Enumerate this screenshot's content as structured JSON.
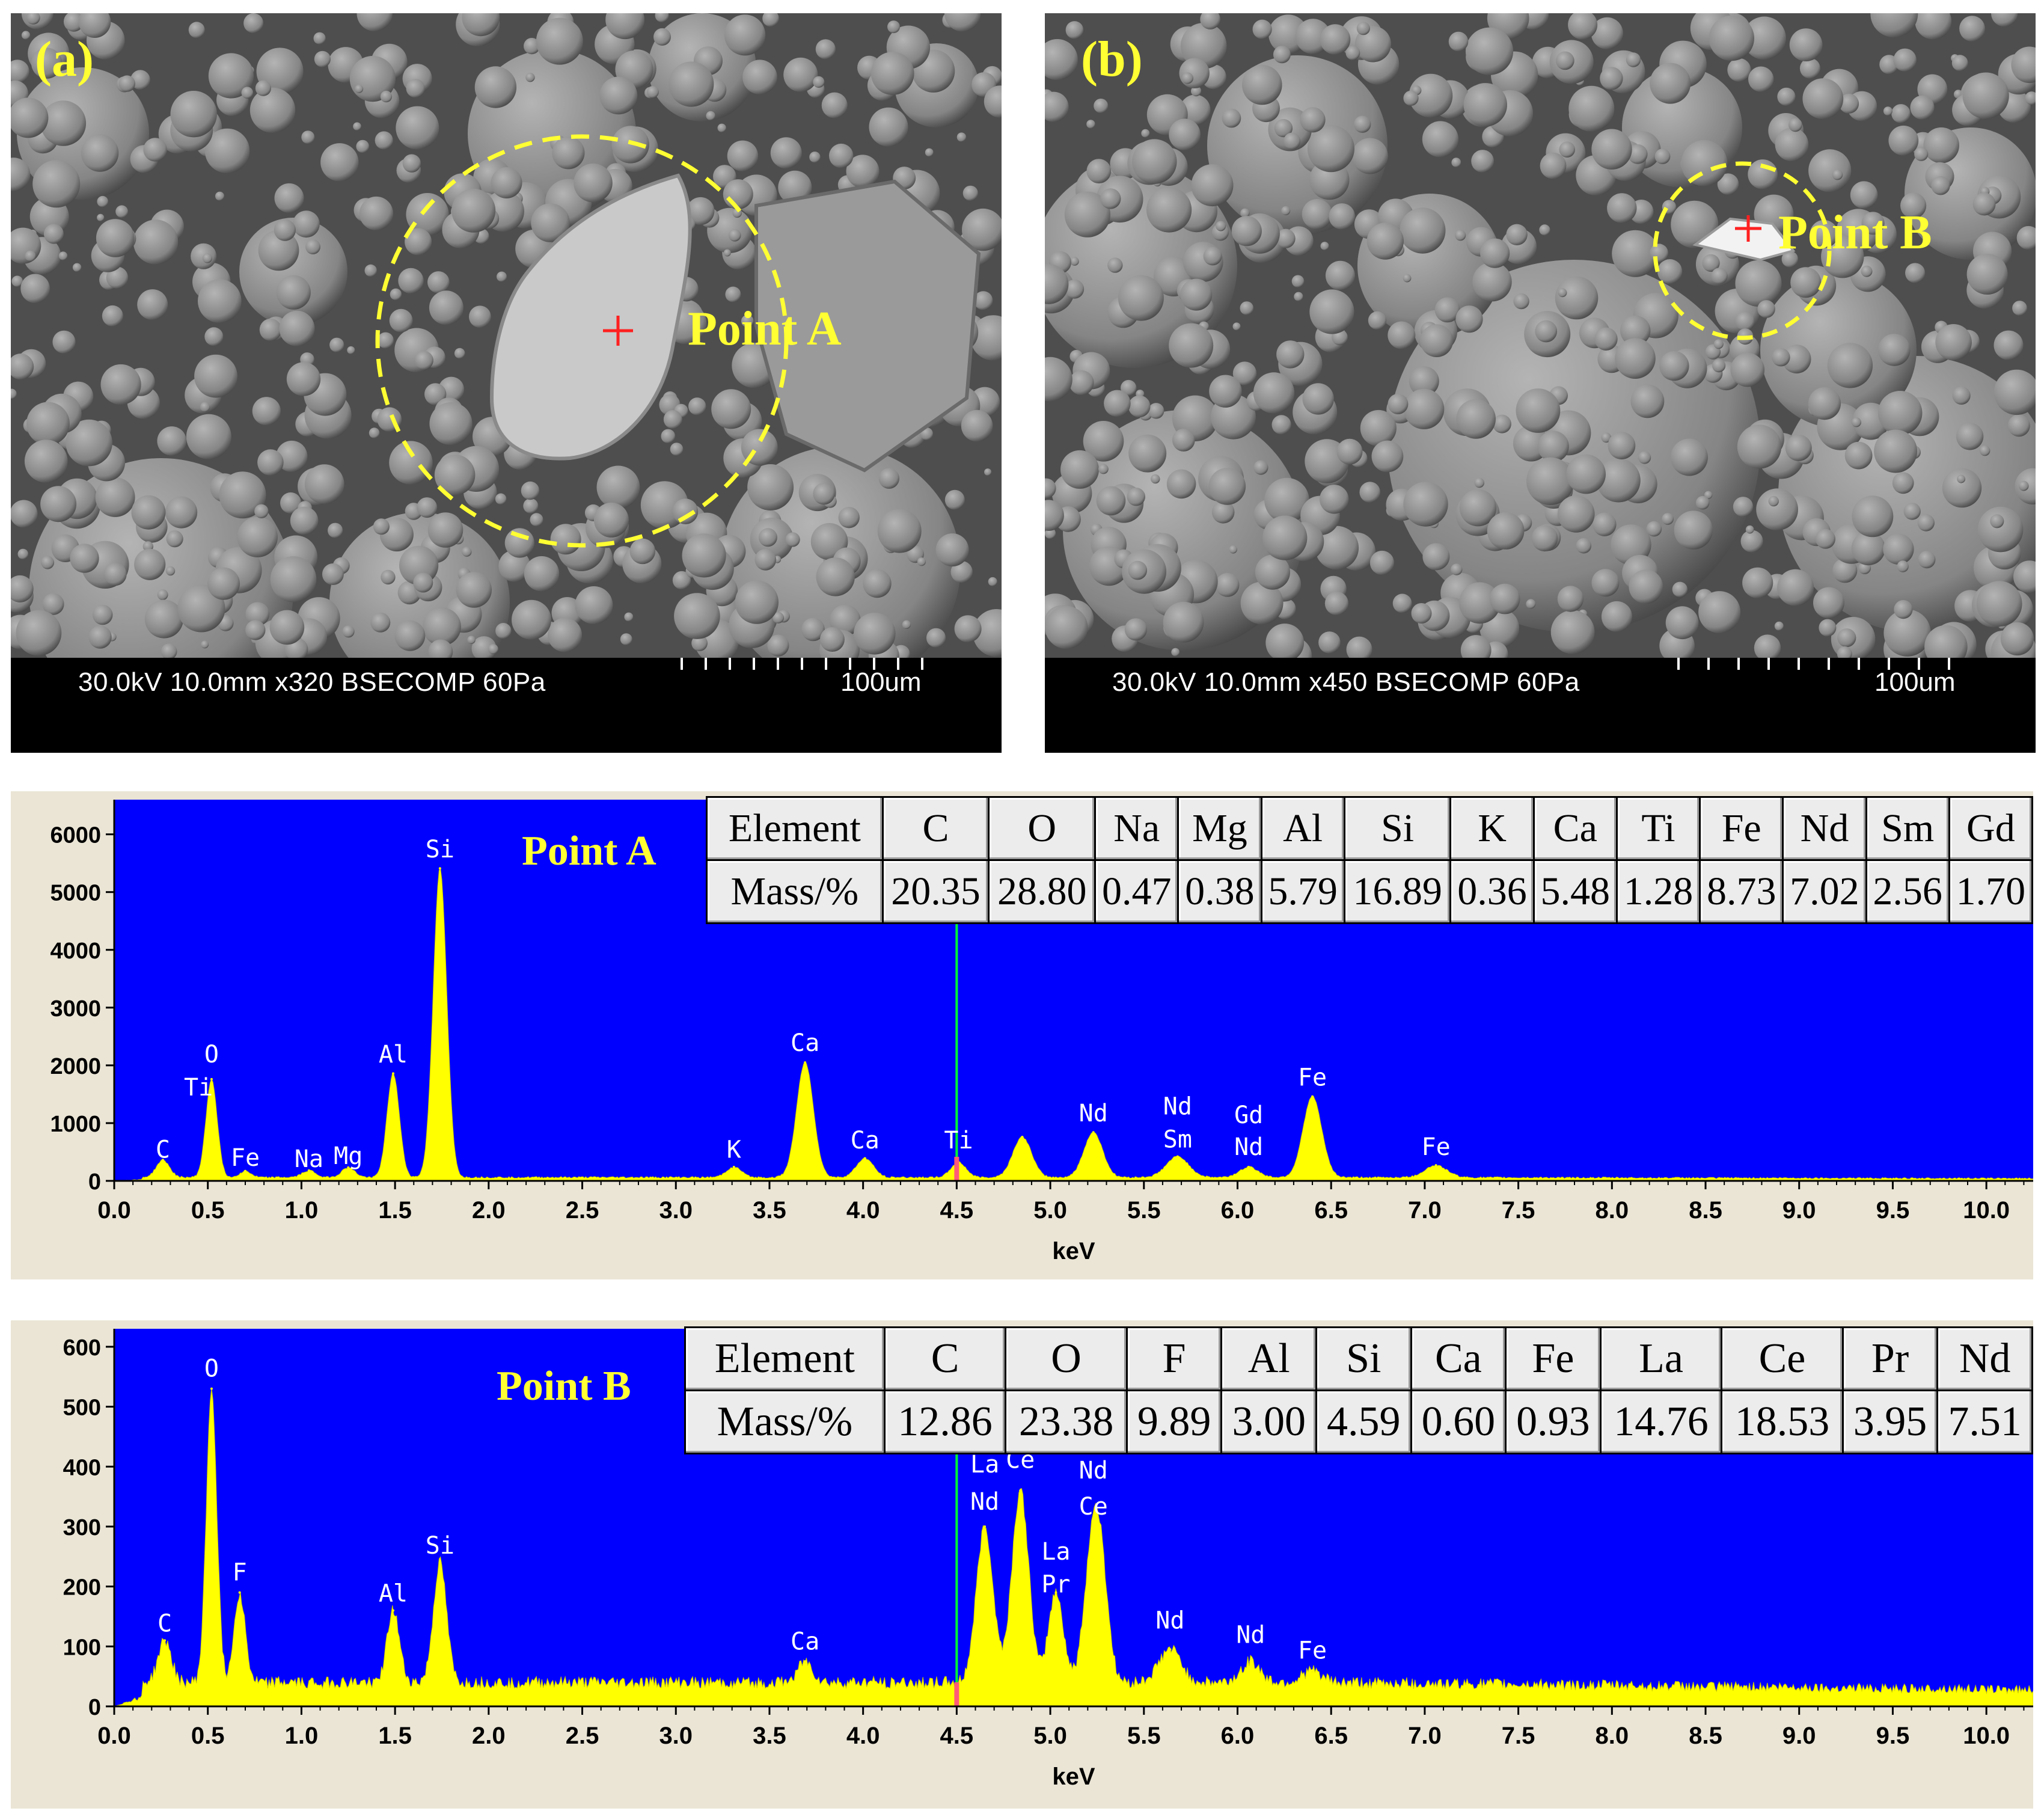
{
  "sem_a": {
    "panel_label": "(a)",
    "point_label": "Point A",
    "info": "30.0kV 10.0mm x320 BSECOMP 60Pa",
    "scale": "100um"
  },
  "sem_b": {
    "panel_label": "(b)",
    "point_label": "Point B",
    "info": "30.0kV 10.0mm x450 BSECOMP 60Pa",
    "scale": "100um"
  },
  "chart_data": [
    {
      "type": "line",
      "title": "Point A",
      "xlabel": "keV",
      "ylabel": "",
      "xlim": [
        0.0,
        10.25
      ],
      "ylim": [
        0,
        6600
      ],
      "x_ticks": [
        "0.0",
        "0.5",
        "1.0",
        "1.5",
        "2.0",
        "2.5",
        "3.0",
        "3.5",
        "4.0",
        "4.5",
        "5.0",
        "5.5",
        "6.0",
        "6.5",
        "7.0",
        "7.5",
        "8.0",
        "8.5",
        "9.0",
        "9.5",
        "10.0"
      ],
      "y_ticks": [
        "0",
        "1000",
        "2000",
        "3000",
        "4000",
        "5000",
        "6000"
      ],
      "grid": false,
      "marker_keV": 4.5,
      "colors": {
        "background": "#0000ff",
        "fill": "#ffff00",
        "marker": "#00ff33"
      },
      "baseline": 60,
      "peaks": [
        {
          "x": 0.26,
          "y": 300,
          "w": 0.035
        },
        {
          "x": 0.52,
          "y": 1700,
          "w": 0.03
        },
        {
          "x": 0.7,
          "y": 110,
          "w": 0.03
        },
        {
          "x": 1.04,
          "y": 120,
          "w": 0.035
        },
        {
          "x": 1.25,
          "y": 170,
          "w": 0.035
        },
        {
          "x": 1.49,
          "y": 1800,
          "w": 0.033
        },
        {
          "x": 1.74,
          "y": 5350,
          "w": 0.036
        },
        {
          "x": 3.31,
          "y": 180,
          "w": 0.04
        },
        {
          "x": 3.69,
          "y": 1990,
          "w": 0.045
        },
        {
          "x": 4.01,
          "y": 330,
          "w": 0.045
        },
        {
          "x": 4.51,
          "y": 260,
          "w": 0.04
        },
        {
          "x": 4.85,
          "y": 700,
          "w": 0.05
        },
        {
          "x": 5.23,
          "y": 780,
          "w": 0.05
        },
        {
          "x": 5.68,
          "y": 360,
          "w": 0.06
        },
        {
          "x": 6.06,
          "y": 180,
          "w": 0.05
        },
        {
          "x": 6.4,
          "y": 1400,
          "w": 0.05
        },
        {
          "x": 7.06,
          "y": 210,
          "w": 0.06
        }
      ],
      "annotations": [
        {
          "text": "C",
          "x": 0.26,
          "y": 400
        },
        {
          "text": "O",
          "x": 0.52,
          "y": 2050
        },
        {
          "text": "Ti",
          "x": 0.45,
          "y": 1480
        },
        {
          "text": "Fe",
          "x": 0.7,
          "y": 260
        },
        {
          "text": "Na",
          "x": 1.04,
          "y": 240
        },
        {
          "text": "Mg",
          "x": 1.25,
          "y": 290
        },
        {
          "text": "Al",
          "x": 1.49,
          "y": 2050
        },
        {
          "text": "Si",
          "x": 1.74,
          "y": 5600
        },
        {
          "text": "K",
          "x": 3.31,
          "y": 400
        },
        {
          "text": "Ca",
          "x": 3.69,
          "y": 2250
        },
        {
          "text": "Ca",
          "x": 4.01,
          "y": 560
        },
        {
          "text": "Ti",
          "x": 4.51,
          "y": 560
        },
        {
          "text": "Nd",
          "x": 5.23,
          "y": 1030
        },
        {
          "text": "Nd",
          "x": 5.68,
          "y": 1150
        },
        {
          "text": "Sm",
          "x": 5.68,
          "y": 580
        },
        {
          "text": "Gd",
          "x": 6.06,
          "y": 1000
        },
        {
          "text": "Nd",
          "x": 6.06,
          "y": 450
        },
        {
          "text": "Fe",
          "x": 6.4,
          "y": 1650
        },
        {
          "text": "Fe",
          "x": 7.06,
          "y": 450
        }
      ],
      "table": {
        "header": "Element",
        "row_label": "Mass/%",
        "elements": [
          "C",
          "O",
          "Na",
          "Mg",
          "Al",
          "Si",
          "K",
          "Ca",
          "Ti",
          "Fe",
          "Nd",
          "Sm",
          "Gd"
        ],
        "values": [
          "20.35",
          "28.80",
          "0.47",
          "0.38",
          "5.79",
          "16.89",
          "0.36",
          "5.48",
          "1.28",
          "8.73",
          "7.02",
          "2.56",
          "1.70"
        ]
      }
    },
    {
      "type": "line",
      "title": "Point B",
      "xlabel": "keV",
      "ylabel": "",
      "xlim": [
        0.0,
        10.25
      ],
      "ylim": [
        0,
        630
      ],
      "x_ticks": [
        "0.0",
        "0.5",
        "1.0",
        "1.5",
        "2.0",
        "2.5",
        "3.0",
        "3.5",
        "4.0",
        "4.5",
        "5.0",
        "5.5",
        "6.0",
        "6.5",
        "7.0",
        "7.5",
        "8.0",
        "8.5",
        "9.0",
        "9.5",
        "10.0"
      ],
      "y_ticks": [
        "0",
        "100",
        "200",
        "300",
        "400",
        "500",
        "600"
      ],
      "grid": false,
      "marker_keV": 4.5,
      "colors": {
        "background": "#0000ff",
        "fill": "#ffff00",
        "marker": "#00ff33"
      },
      "baseline": 40,
      "peaks": [
        {
          "x": 0.27,
          "y": 70,
          "w": 0.035
        },
        {
          "x": 0.52,
          "y": 490,
          "w": 0.028
        },
        {
          "x": 0.67,
          "y": 150,
          "w": 0.03
        },
        {
          "x": 1.49,
          "y": 120,
          "w": 0.033
        },
        {
          "x": 1.74,
          "y": 200,
          "w": 0.035
        },
        {
          "x": 3.69,
          "y": 35,
          "w": 0.04
        },
        {
          "x": 4.65,
          "y": 260,
          "w": 0.045
        },
        {
          "x": 4.84,
          "y": 320,
          "w": 0.045
        },
        {
          "x": 5.03,
          "y": 150,
          "w": 0.04
        },
        {
          "x": 5.23,
          "y": 240,
          "w": 0.045
        },
        {
          "x": 5.28,
          "y": 100,
          "w": 0.04
        },
        {
          "x": 5.64,
          "y": 55,
          "w": 0.06
        },
        {
          "x": 6.07,
          "y": 35,
          "w": 0.05
        },
        {
          "x": 6.4,
          "y": 20,
          "w": 0.05
        }
      ],
      "annotations": [
        {
          "text": "C",
          "x": 0.27,
          "y": 125
        },
        {
          "text": "O",
          "x": 0.52,
          "y": 550
        },
        {
          "text": "F",
          "x": 0.67,
          "y": 210
        },
        {
          "text": "Al",
          "x": 1.49,
          "y": 175
        },
        {
          "text": "Si",
          "x": 1.74,
          "y": 255
        },
        {
          "text": "Ca",
          "x": 3.69,
          "y": 95
        },
        {
          "text": "La",
          "x": 4.65,
          "y": 390
        },
        {
          "text": "Nd",
          "x": 4.65,
          "y": 328
        },
        {
          "text": "Ce",
          "x": 4.84,
          "y": 398
        },
        {
          "text": "La",
          "x": 5.03,
          "y": 245
        },
        {
          "text": "Pr",
          "x": 5.03,
          "y": 190
        },
        {
          "text": "Nd",
          "x": 5.23,
          "y": 380
        },
        {
          "text": "Ce",
          "x": 5.23,
          "y": 320
        },
        {
          "text": "Nd",
          "x": 5.64,
          "y": 130
        },
        {
          "text": "Nd",
          "x": 6.07,
          "y": 106
        },
        {
          "text": "Fe",
          "x": 6.4,
          "y": 80
        }
      ],
      "table": {
        "header": "Element",
        "row_label": "Mass/%",
        "elements": [
          "C",
          "O",
          "F",
          "Al",
          "Si",
          "Ca",
          "Fe",
          "La",
          "Ce",
          "Pr",
          "Nd"
        ],
        "values": [
          "12.86",
          "23.38",
          "9.89",
          "3.00",
          "4.59",
          "0.60",
          "0.93",
          "14.76",
          "18.53",
          "3.95",
          "7.51"
        ]
      }
    }
  ]
}
